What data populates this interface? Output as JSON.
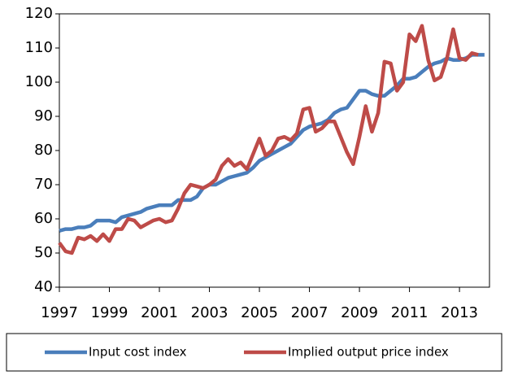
{
  "chart_data": {
    "type": "line",
    "x": [
      1997,
      1997.25,
      1997.5,
      1997.75,
      1998,
      1998.25,
      1998.5,
      1998.75,
      1999,
      1999.25,
      1999.5,
      1999.75,
      2000,
      2000.25,
      2000.5,
      2000.75,
      2001,
      2001.25,
      2001.5,
      2001.75,
      2002,
      2002.25,
      2002.5,
      2002.75,
      2003,
      2003.25,
      2003.5,
      2003.75,
      2004,
      2004.25,
      2004.5,
      2004.75,
      2005,
      2005.25,
      2005.5,
      2005.75,
      2006,
      2006.25,
      2006.5,
      2006.75,
      2007,
      2007.25,
      2007.5,
      2007.75,
      2008,
      2008.25,
      2008.5,
      2008.75,
      2009,
      2009.25,
      2009.5,
      2009.75,
      2010,
      2010.25,
      2010.5,
      2010.75,
      2011,
      2011.25,
      2011.5,
      2011.75,
      2012,
      2012.25,
      2012.5,
      2012.75,
      2013,
      2013.25,
      2013.5,
      2013.75,
      2014
    ],
    "series": [
      {
        "name": "Input cost index",
        "color": "#4a7ebb",
        "values": [
          56.5,
          57,
          57,
          57.5,
          57.5,
          58,
          59.5,
          59.5,
          59.5,
          59,
          60.5,
          61,
          61.5,
          62,
          63,
          63.5,
          64,
          64,
          64,
          65.5,
          65.5,
          65.5,
          66.5,
          69,
          70,
          70,
          71,
          72,
          72.5,
          73,
          73.5,
          75,
          77,
          78,
          79,
          80,
          81,
          82,
          84,
          86,
          87,
          87.5,
          88,
          89,
          91,
          92,
          92.5,
          95,
          97.5,
          97.5,
          96.5,
          96,
          96,
          97.5,
          99,
          101,
          101,
          101.5,
          103,
          104.5,
          105.5,
          106,
          107,
          106.5,
          106.5,
          107,
          108,
          108,
          108
        ]
      },
      {
        "name": "Implied output price index",
        "color": "#be4b48",
        "values": [
          53,
          50.5,
          50,
          54.5,
          54,
          55,
          53.5,
          55.5,
          53.5,
          57,
          57,
          60,
          59.5,
          57.5,
          58.5,
          59.5,
          60,
          59,
          59.5,
          63,
          67.5,
          70,
          69.5,
          69,
          70,
          71.5,
          75.5,
          77.5,
          75.5,
          76.5,
          74.5,
          79,
          83.5,
          78.5,
          80,
          83.5,
          84,
          83,
          85,
          92,
          92.5,
          85.5,
          86.5,
          88.5,
          88.5,
          84,
          79.5,
          76,
          84,
          93,
          85.5,
          91,
          106,
          105.5,
          97.5,
          100,
          114,
          112,
          116.5,
          106.5,
          100.5,
          101.5,
          107,
          115.5,
          107,
          106.5,
          108.5,
          108,
          null
        ]
      }
    ],
    "xlim": [
      1997,
      2014.2
    ],
    "xticks": [
      1997,
      1999,
      2001,
      2003,
      2005,
      2007,
      2009,
      2011,
      2013
    ],
    "ylim": [
      40,
      120
    ],
    "yticks": [
      40,
      50,
      60,
      70,
      80,
      90,
      100,
      110,
      120
    ],
    "grid": false,
    "legend": "bottom"
  }
}
